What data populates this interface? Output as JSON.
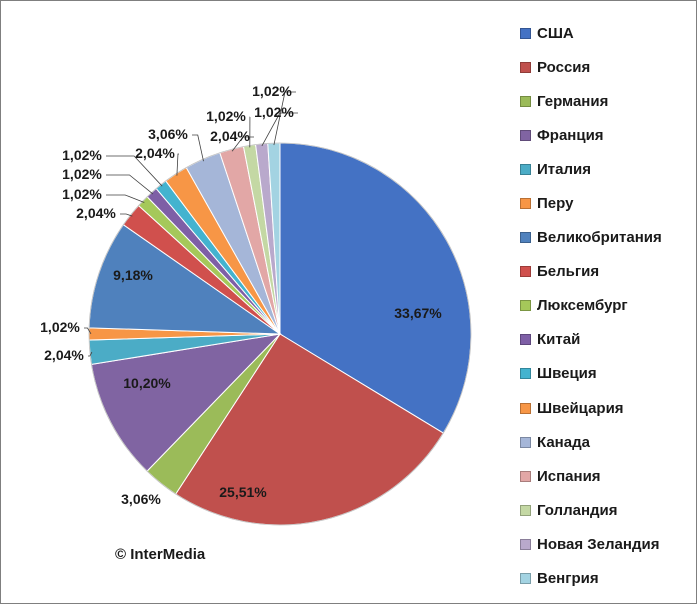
{
  "chart_data": {
    "type": "pie",
    "title": "",
    "categories": [
      "США",
      "Россия",
      "Германия",
      "Франция",
      "Италия",
      "Перу",
      "Великобритания",
      "Бельгия",
      "Люксембург",
      "Китай",
      "Швеция",
      "Швейцария",
      "Канада",
      "Испания",
      "Голландия",
      "Новая Зеландия",
      "Венгрия"
    ],
    "values": [
      33.67,
      25.51,
      3.06,
      10.2,
      2.04,
      1.02,
      9.18,
      2.04,
      1.02,
      1.02,
      1.02,
      2.04,
      3.06,
      2.04,
      1.02,
      1.02,
      1.02
    ],
    "labels": [
      "33,67%",
      "25,51%",
      "3,06%",
      "10,20%",
      "2,04%",
      "1,02%",
      "9,18%",
      "2,04%",
      "1,02%",
      "1,02%",
      "1,02%",
      "2,04%",
      "3,06%",
      "2,04%",
      "1,02%",
      "1,02%",
      "1,02%"
    ],
    "colors": [
      "#4472C4",
      "#C0504D",
      "#9BBB59",
      "#8064A2",
      "#4BACC6",
      "#F79646",
      "#4F81BD",
      "#D0504D",
      "#A5C85A",
      "#7E5FA6",
      "#43B3CF",
      "#F79646",
      "#A5B6D8",
      "#E2A7A6",
      "#C4D8A4",
      "#B9A9CC",
      "#A3D3E2"
    ],
    "legend_position": "right"
  },
  "copyright": "© InterMedia"
}
